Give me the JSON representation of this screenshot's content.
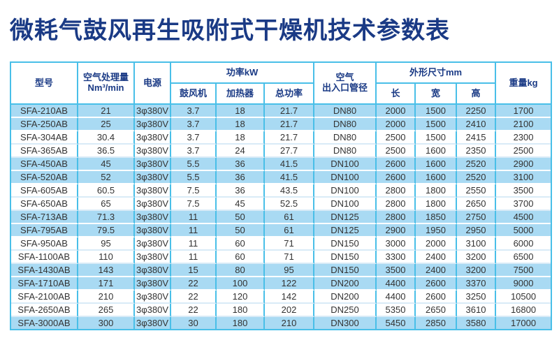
{
  "title": "微耗气鼓风再生吸附式干燥机技术参数表",
  "colors": {
    "accent_border": "#49bfe8",
    "row_highlight_blue": "#a9daf3",
    "header_text_navy": "#1a3a85",
    "body_text": "#333333"
  },
  "table": {
    "header": {
      "model": "型号",
      "capacity_line1": "空气处理量",
      "capacity_line2": "Nm³/min",
      "power_supply": "电源",
      "power_group": "功率kW",
      "blower": "鼓风机",
      "heater": "加热器",
      "total_power": "总功率",
      "air_port_line1": "空气",
      "air_port_line2": "出入口管径",
      "dimensions_group": "外形尺寸mm",
      "length": "长",
      "width": "宽",
      "height": "高",
      "weight": "重量kg"
    },
    "columns": [
      "model",
      "capacity_nm3_min",
      "power_supply",
      "blower_kw",
      "heater_kw",
      "total_kw",
      "port_diameter",
      "length_mm",
      "width_mm",
      "height_mm",
      "weight_kg"
    ],
    "rows": [
      [
        "SFA-210AB",
        "21",
        "3φ380V",
        "3.7",
        "18",
        "21.7",
        "DN80",
        "2000",
        "1500",
        "2250",
        "1700"
      ],
      [
        "SFA-250AB",
        "25",
        "3φ380V",
        "3.7",
        "18",
        "21.7",
        "DN80",
        "2000",
        "1500",
        "2410",
        "2100"
      ],
      [
        "SFA-304AB",
        "30.4",
        "3φ380V",
        "3.7",
        "18",
        "21.7",
        "DN80",
        "2500",
        "1500",
        "2415",
        "2300"
      ],
      [
        "SFA-365AB",
        "36.5",
        "3φ380V",
        "3.7",
        "24",
        "27.7",
        "DN80",
        "2500",
        "1600",
        "2350",
        "2500"
      ],
      [
        "SFA-450AB",
        "45",
        "3φ380V",
        "5.5",
        "36",
        "41.5",
        "DN100",
        "2600",
        "1600",
        "2520",
        "2900"
      ],
      [
        "SFA-520AB",
        "52",
        "3φ380V",
        "5.5",
        "36",
        "41.5",
        "DN100",
        "2600",
        "1600",
        "2520",
        "3100"
      ],
      [
        "SFA-605AB",
        "60.5",
        "3φ380V",
        "7.5",
        "36",
        "43.5",
        "DN100",
        "2800",
        "1800",
        "2550",
        "3500"
      ],
      [
        "SFA-650AB",
        "65",
        "3φ380V",
        "7.5",
        "45",
        "52.5",
        "DN100",
        "2800",
        "1800",
        "2650",
        "3700"
      ],
      [
        "SFA-713AB",
        "71.3",
        "3φ380V",
        "11",
        "50",
        "61",
        "DN125",
        "2800",
        "1850",
        "2750",
        "4500"
      ],
      [
        "SFA-795AB",
        "79.5",
        "3φ380V",
        "11",
        "50",
        "61",
        "DN125",
        "2900",
        "1950",
        "2950",
        "5000"
      ],
      [
        "SFA-950AB",
        "95",
        "3φ380V",
        "11",
        "60",
        "71",
        "DN150",
        "3000",
        "2000",
        "3100",
        "6000"
      ],
      [
        "SFA-1100AB",
        "110",
        "3φ380V",
        "11",
        "60",
        "71",
        "DN150",
        "3300",
        "2400",
        "3200",
        "6500"
      ],
      [
        "SFA-1430AB",
        "143",
        "3φ380V",
        "15",
        "80",
        "95",
        "DN150",
        "3500",
        "2400",
        "3200",
        "7500"
      ],
      [
        "SFA-1710AB",
        "171",
        "3φ380V",
        "22",
        "100",
        "122",
        "DN200",
        "4400",
        "2600",
        "3370",
        "9000"
      ],
      [
        "SFA-2100AB",
        "210",
        "3φ380V",
        "22",
        "120",
        "142",
        "DN200",
        "4400",
        "2600",
        "3250",
        "10500"
      ],
      [
        "SFA-2650AB",
        "265",
        "3φ380V",
        "22",
        "180",
        "202",
        "DN250",
        "5350",
        "2650",
        "3610",
        "16800"
      ],
      [
        "SFA-3000AB",
        "300",
        "3φ380V",
        "30",
        "180",
        "210",
        "DN300",
        "5450",
        "2850",
        "3580",
        "17000"
      ]
    ]
  }
}
